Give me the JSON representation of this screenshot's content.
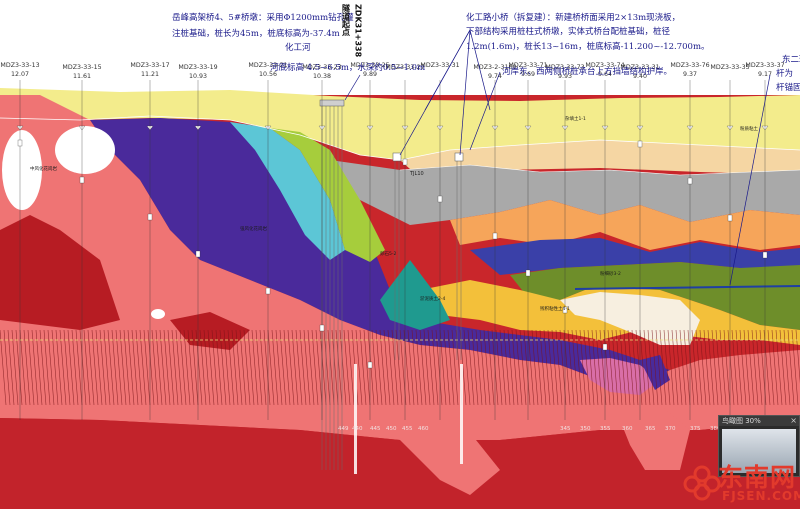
{
  "annotations": {
    "bridge_4_5": [
      "岳峰高架桥4、5#桥墩：采用Φ1200mm钻孔灌",
      "注桩基础，桩长为45m，桩底标高为-37.4m"
    ],
    "river_name": "化工河",
    "river_level": "河底标高 4.5~6.5m，水深约0.5~1.0m",
    "small_bridge": [
      "化工路小桥（拆复建）：新建桥桥面采用2×13m现浇板，",
      "下部结构采用桩柱式桥墩，实体式桥台配桩基础，桩径",
      "1.2m(1.6m)，桩长13~16m，桩底标高-11.200~-12.700m。"
    ],
    "bank_note": "河岸东、西两侧桥桩承台上方挡墙结构护岸。",
    "mileage": [
      "隧道起点",
      "ZDK31+338"
    ],
    "east_road": [
      "东二环",
      "杆为",
      "杆锚固"
    ],
    "tjl_label": "TJL10"
  },
  "boreholes": [
    {
      "id": "MDZ3-33-13",
      "elev": "12.07"
    },
    {
      "id": "MDZ3-33-15",
      "elev": "11.61"
    },
    {
      "id": "MDZ3-33-17",
      "elev": "11.21"
    },
    {
      "id": "MDZ3-33-19",
      "elev": "10.93"
    },
    {
      "id": "MDZ3-33-21",
      "elev": "10.56"
    },
    {
      "id": "MDZ3-33-23",
      "elev": "10.38"
    },
    {
      "id": "MDZ3-33-25",
      "elev": "9.89"
    },
    {
      "id": "MDZ3-33-27",
      "elev": ""
    },
    {
      "id": "MDZ3-33-31",
      "elev": ""
    },
    {
      "id": "MDZ3-2-3160",
      "elev": "9.74"
    },
    {
      "id": "MDZ3-33-71",
      "elev": "9.69"
    },
    {
      "id": "MDZ3-33-73",
      "elev": "9.93"
    },
    {
      "id": "MDZ3-33-74",
      "elev": "9.64"
    },
    {
      "id": "MDZ3-33-31",
      "elev": "9.40"
    },
    {
      "id": "MDZ3-33-76",
      "elev": "9.37"
    },
    {
      "id": "MDZ3-33-35",
      "elev": ""
    },
    {
      "id": "MDZ3-33-37",
      "elev": "9.17"
    }
  ],
  "depth_row": [
    "449",
    "440",
    "445",
    "450",
    "455",
    "460",
    "345",
    "350",
    "355",
    "360",
    "365",
    "370",
    "375",
    "380",
    "385"
  ],
  "labels": {
    "clay_a": "杂填土1-1",
    "clay_b": "粉质粘土",
    "gravel": "中风化花岗岩",
    "strong": "强风化花岗岩",
    "residual": "残积粘性土4-1",
    "sand": "粉细砂3-2",
    "silt": "淤泥质土2-4",
    "cobble": "卵石5-2"
  },
  "watermark": {
    "name_cn": "东南网",
    "name_en": "FJSEN.COM"
  },
  "thumbnail": {
    "title": "鸟瞰图 30%",
    "close": "×"
  },
  "colors": {
    "topsoil": "#f3ec8c",
    "grey": "#a9a9a9",
    "salmon": "#f07272",
    "red": "#d4282c",
    "darkred": "#b71c23",
    "purple": "#4a2a9b",
    "navy": "#33339a",
    "cyan": "#5cc6d6",
    "lime": "#a6cd3c",
    "olive": "#6e8e2a",
    "teal": "#1f9a8f",
    "gold": "#f3c03a",
    "orange": "#f6a55a",
    "beige": "#f5d6a3",
    "pinkdark": "#d96ea7",
    "annot": "#1a1a8a",
    "tunnel": "#1f3fa3",
    "watermark": "#e23a2c"
  }
}
